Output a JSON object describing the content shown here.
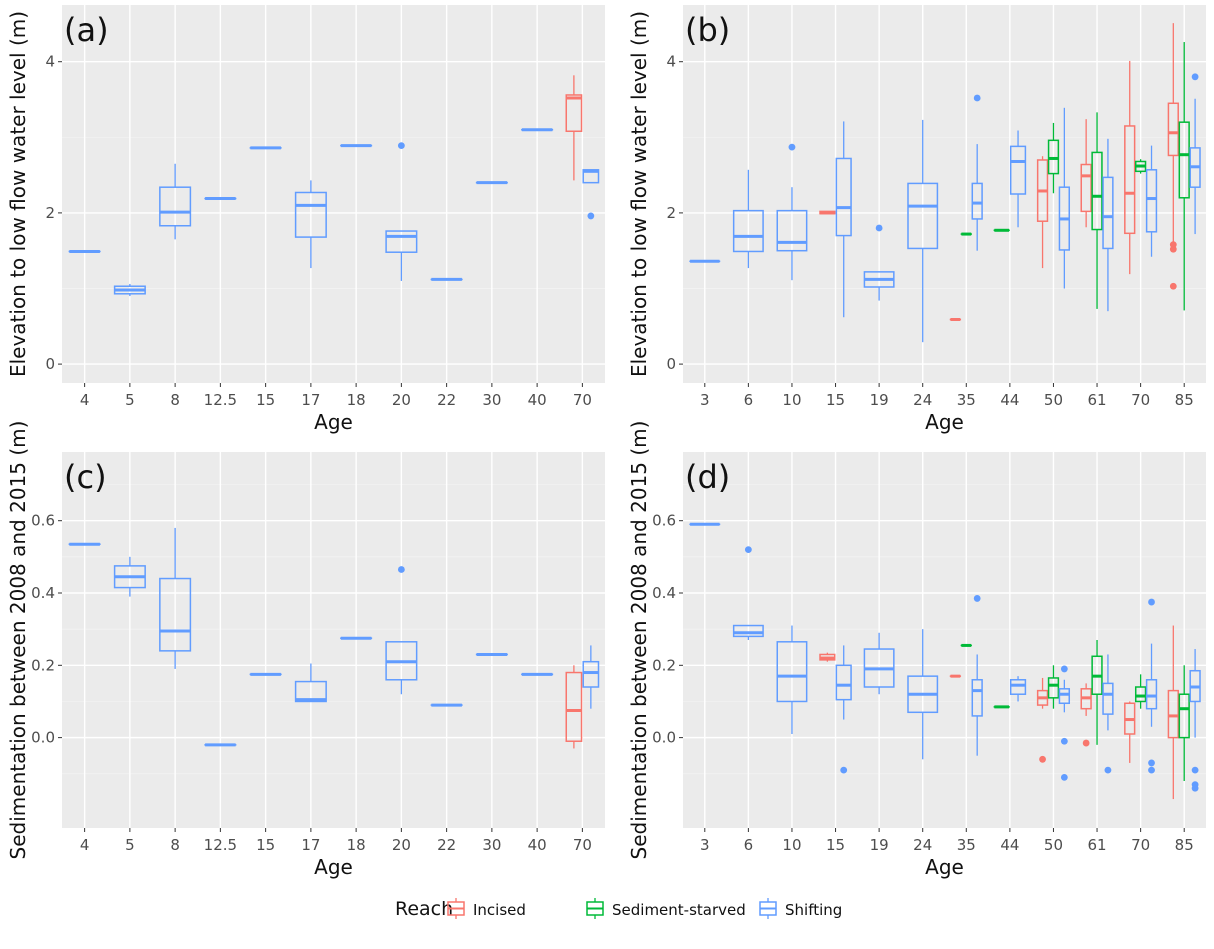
{
  "colors": {
    "Incised": "#F8766D",
    "Sediment-starved": "#00BA38",
    "Shifting": "#619CFF",
    "panel_bg": "#EBEBEB"
  },
  "legend": {
    "title": "Reach",
    "items": [
      "Incised",
      "Sediment-starved",
      "Shifting"
    ]
  },
  "chart_data": [
    {
      "type": "boxplot",
      "panel": "(a)",
      "xlabel": "Age",
      "ylabel": "Elevation to low flow water level (m)",
      "categories": [
        "4",
        "5",
        "8",
        "12.5",
        "15",
        "17",
        "18",
        "20",
        "22",
        "30",
        "40",
        "70"
      ],
      "ylim": [
        -0.25,
        4.75
      ],
      "yticks": [
        0,
        2,
        4
      ],
      "grid": true,
      "boxes": [
        {
          "cat": "4",
          "reach": "Shifting",
          "min": 1.49,
          "q1": 1.49,
          "median": 1.49,
          "q3": 1.49,
          "max": 1.49
        },
        {
          "cat": "5",
          "reach": "Shifting",
          "min": 0.9,
          "q1": 0.93,
          "median": 0.98,
          "q3": 1.03,
          "max": 1.06
        },
        {
          "cat": "8",
          "reach": "Shifting",
          "min": 1.65,
          "q1": 1.83,
          "median": 2.01,
          "q3": 2.34,
          "max": 2.65
        },
        {
          "cat": "12.5",
          "reach": "Shifting",
          "min": 2.19,
          "q1": 2.19,
          "median": 2.19,
          "q3": 2.19,
          "max": 2.19
        },
        {
          "cat": "15",
          "reach": "Shifting",
          "min": 2.86,
          "q1": 2.86,
          "median": 2.86,
          "q3": 2.86,
          "max": 2.86
        },
        {
          "cat": "17",
          "reach": "Shifting",
          "min": 1.27,
          "q1": 1.68,
          "median": 2.1,
          "q3": 2.27,
          "max": 2.43
        },
        {
          "cat": "18",
          "reach": "Shifting",
          "min": 2.89,
          "q1": 2.89,
          "median": 2.89,
          "q3": 2.89,
          "max": 2.89
        },
        {
          "cat": "20",
          "reach": "Shifting",
          "min": 1.1,
          "q1": 1.48,
          "median": 1.69,
          "q3": 1.76,
          "max": 1.76,
          "outliers": [
            2.89
          ]
        },
        {
          "cat": "22",
          "reach": "Shifting",
          "min": 1.12,
          "q1": 1.12,
          "median": 1.12,
          "q3": 1.12,
          "max": 1.12
        },
        {
          "cat": "30",
          "reach": "Shifting",
          "min": 2.4,
          "q1": 2.4,
          "median": 2.4,
          "q3": 2.4,
          "max": 2.4
        },
        {
          "cat": "40",
          "reach": "Shifting",
          "min": 3.1,
          "q1": 3.1,
          "median": 3.1,
          "q3": 3.1,
          "max": 3.1
        },
        {
          "cat": "70",
          "reach": "Incised",
          "min": 2.43,
          "q1": 3.08,
          "median": 3.52,
          "q3": 3.56,
          "max": 3.82
        },
        {
          "cat": "70",
          "reach": "Shifting",
          "min": 2.4,
          "q1": 2.4,
          "median": 2.55,
          "q3": 2.57,
          "max": 2.57,
          "outliers": [
            1.96
          ]
        }
      ]
    },
    {
      "type": "boxplot",
      "panel": "(b)",
      "xlabel": "Age",
      "ylabel": "Elevation to low flow water level (m)",
      "categories": [
        "3",
        "6",
        "10",
        "15",
        "19",
        "24",
        "35",
        "44",
        "50",
        "61",
        "70",
        "85"
      ],
      "ylim": [
        -0.25,
        4.75
      ],
      "yticks": [
        0,
        2,
        4
      ],
      "grid": true,
      "boxes": [
        {
          "cat": "3",
          "reach": "Shifting",
          "min": 1.36,
          "q1": 1.36,
          "median": 1.36,
          "q3": 1.36,
          "max": 1.36
        },
        {
          "cat": "6",
          "reach": "Shifting",
          "min": 1.27,
          "q1": 1.49,
          "median": 1.69,
          "q3": 2.03,
          "max": 2.57
        },
        {
          "cat": "10",
          "reach": "Shifting",
          "min": 1.11,
          "q1": 1.5,
          "median": 1.61,
          "q3": 2.03,
          "max": 2.34,
          "outliers": [
            2.87
          ]
        },
        {
          "cat": "15",
          "reach": "Incised",
          "min": 1.99,
          "q1": 1.99,
          "median": 2.0,
          "q3": 2.02,
          "max": 2.02
        },
        {
          "cat": "15",
          "reach": "Shifting",
          "min": 0.62,
          "q1": 1.7,
          "median": 2.07,
          "q3": 2.72,
          "max": 3.21
        },
        {
          "cat": "19",
          "reach": "Shifting",
          "min": 0.84,
          "q1": 1.02,
          "median": 1.12,
          "q3": 1.22,
          "max": 1.22,
          "outliers": [
            1.8
          ]
        },
        {
          "cat": "24",
          "reach": "Shifting",
          "min": 0.29,
          "q1": 1.53,
          "median": 2.09,
          "q3": 2.39,
          "max": 3.23
        },
        {
          "cat": "35",
          "reach": "Incised",
          "min": 0.59,
          "q1": 0.59,
          "median": 0.59,
          "q3": 0.59,
          "max": 0.59
        },
        {
          "cat": "35",
          "reach": "Sediment-starved",
          "min": 1.72,
          "q1": 1.72,
          "median": 1.72,
          "q3": 1.72,
          "max": 1.72
        },
        {
          "cat": "35",
          "reach": "Shifting",
          "min": 1.5,
          "q1": 1.92,
          "median": 2.13,
          "q3": 2.39,
          "max": 2.91,
          "outliers": [
            3.52
          ]
        },
        {
          "cat": "44",
          "reach": "Sediment-starved",
          "min": 1.77,
          "q1": 1.77,
          "median": 1.77,
          "q3": 1.77,
          "max": 1.77
        },
        {
          "cat": "44",
          "reach": "Shifting",
          "min": 1.81,
          "q1": 2.25,
          "median": 2.68,
          "q3": 2.88,
          "max": 3.09
        },
        {
          "cat": "50",
          "reach": "Incised",
          "min": 1.27,
          "q1": 1.89,
          "median": 2.29,
          "q3": 2.7,
          "max": 2.75
        },
        {
          "cat": "50",
          "reach": "Sediment-starved",
          "min": 2.26,
          "q1": 2.52,
          "median": 2.72,
          "q3": 2.96,
          "max": 3.19
        },
        {
          "cat": "50",
          "reach": "Shifting",
          "min": 1.0,
          "q1": 1.51,
          "median": 1.92,
          "q3": 2.34,
          "max": 3.39
        },
        {
          "cat": "61",
          "reach": "Incised",
          "min": 1.81,
          "q1": 2.02,
          "median": 2.49,
          "q3": 2.64,
          "max": 3.24
        },
        {
          "cat": "61",
          "reach": "Sediment-starved",
          "min": 0.73,
          "q1": 1.78,
          "median": 2.22,
          "q3": 2.8,
          "max": 3.33
        },
        {
          "cat": "61",
          "reach": "Shifting",
          "min": 0.7,
          "q1": 1.53,
          "median": 1.95,
          "q3": 2.47,
          "max": 2.98
        },
        {
          "cat": "70",
          "reach": "Incised",
          "min": 1.19,
          "q1": 1.73,
          "median": 2.26,
          "q3": 3.15,
          "max": 4.01
        },
        {
          "cat": "70",
          "reach": "Sediment-starved",
          "min": 2.52,
          "q1": 2.55,
          "median": 2.62,
          "q3": 2.68,
          "max": 2.71
        },
        {
          "cat": "70",
          "reach": "Shifting",
          "min": 1.42,
          "q1": 1.75,
          "median": 2.19,
          "q3": 2.57,
          "max": 2.89
        },
        {
          "cat": "85",
          "reach": "Incised",
          "min": 1.59,
          "q1": 2.76,
          "median": 3.06,
          "q3": 3.45,
          "max": 4.51,
          "outliers": [
            1.58,
            1.52,
            1.03
          ]
        },
        {
          "cat": "85",
          "reach": "Sediment-starved",
          "min": 0.71,
          "q1": 2.2,
          "median": 2.77,
          "q3": 3.2,
          "max": 4.26
        },
        {
          "cat": "85",
          "reach": "Shifting",
          "min": 1.72,
          "q1": 2.34,
          "median": 2.61,
          "q3": 2.86,
          "max": 3.51,
          "outliers": [
            3.8
          ]
        }
      ]
    },
    {
      "type": "boxplot",
      "panel": "(c)",
      "xlabel": "Age",
      "ylabel": "Sedimentation between 2008 and 2015 (m)",
      "categories": [
        "4",
        "5",
        "8",
        "12.5",
        "15",
        "17",
        "18",
        "20",
        "22",
        "30",
        "40",
        "70"
      ],
      "ylim": [
        -0.25,
        0.79
      ],
      "yticks": [
        0.0,
        0.2,
        0.4,
        0.6
      ],
      "ytick_labels": [
        "0.0",
        "0.2",
        "0.4",
        "0.6"
      ],
      "grid": true,
      "boxes": [
        {
          "cat": "4",
          "reach": "Shifting",
          "min": 0.535,
          "q1": 0.535,
          "median": 0.535,
          "q3": 0.535,
          "max": 0.535
        },
        {
          "cat": "5",
          "reach": "Shifting",
          "min": 0.39,
          "q1": 0.415,
          "median": 0.445,
          "q3": 0.475,
          "max": 0.5
        },
        {
          "cat": "8",
          "reach": "Shifting",
          "min": 0.19,
          "q1": 0.24,
          "median": 0.295,
          "q3": 0.44,
          "max": 0.58
        },
        {
          "cat": "12.5",
          "reach": "Shifting",
          "min": -0.02,
          "q1": -0.02,
          "median": -0.02,
          "q3": -0.02,
          "max": -0.02
        },
        {
          "cat": "15",
          "reach": "Shifting",
          "min": 0.175,
          "q1": 0.175,
          "median": 0.175,
          "q3": 0.175,
          "max": 0.175
        },
        {
          "cat": "17",
          "reach": "Shifting",
          "min": 0.1,
          "q1": 0.1,
          "median": 0.105,
          "q3": 0.155,
          "max": 0.205
        },
        {
          "cat": "18",
          "reach": "Shifting",
          "min": 0.275,
          "q1": 0.275,
          "median": 0.275,
          "q3": 0.275,
          "max": 0.275
        },
        {
          "cat": "20",
          "reach": "Shifting",
          "min": 0.12,
          "q1": 0.16,
          "median": 0.21,
          "q3": 0.265,
          "max": 0.265,
          "outliers": [
            0.465
          ]
        },
        {
          "cat": "22",
          "reach": "Shifting",
          "min": 0.09,
          "q1": 0.09,
          "median": 0.09,
          "q3": 0.09,
          "max": 0.09
        },
        {
          "cat": "30",
          "reach": "Shifting",
          "min": 0.23,
          "q1": 0.23,
          "median": 0.23,
          "q3": 0.23,
          "max": 0.23
        },
        {
          "cat": "40",
          "reach": "Shifting",
          "min": 0.175,
          "q1": 0.175,
          "median": 0.175,
          "q3": 0.175,
          "max": 0.175
        },
        {
          "cat": "70",
          "reach": "Incised",
          "min": -0.03,
          "q1": -0.01,
          "median": 0.075,
          "q3": 0.18,
          "max": 0.2
        },
        {
          "cat": "70",
          "reach": "Shifting",
          "min": 0.08,
          "q1": 0.14,
          "median": 0.18,
          "q3": 0.21,
          "max": 0.255
        }
      ]
    },
    {
      "type": "boxplot",
      "panel": "(d)",
      "xlabel": "Age",
      "ylabel": "Sedimentation between 2008 and 2015 (m)",
      "categories": [
        "3",
        "6",
        "10",
        "15",
        "19",
        "24",
        "35",
        "44",
        "50",
        "61",
        "70",
        "85"
      ],
      "ylim": [
        -0.25,
        0.79
      ],
      "yticks": [
        0.0,
        0.2,
        0.4,
        0.6
      ],
      "ytick_labels": [
        "0.0",
        "0.2",
        "0.4",
        "0.6"
      ],
      "grid": true,
      "boxes": [
        {
          "cat": "3",
          "reach": "Shifting",
          "min": 0.59,
          "q1": 0.59,
          "median": 0.59,
          "q3": 0.59,
          "max": 0.59
        },
        {
          "cat": "6",
          "reach": "Shifting",
          "min": 0.27,
          "q1": 0.28,
          "median": 0.29,
          "q3": 0.31,
          "max": 0.31,
          "outliers": [
            0.52
          ]
        },
        {
          "cat": "10",
          "reach": "Shifting",
          "min": 0.01,
          "q1": 0.1,
          "median": 0.17,
          "q3": 0.265,
          "max": 0.31
        },
        {
          "cat": "15",
          "reach": "Incised",
          "min": 0.21,
          "q1": 0.215,
          "median": 0.22,
          "q3": 0.23,
          "max": 0.235
        },
        {
          "cat": "15",
          "reach": "Shifting",
          "min": 0.05,
          "q1": 0.105,
          "median": 0.145,
          "q3": 0.2,
          "max": 0.255,
          "outliers": [
            -0.09
          ]
        },
        {
          "cat": "19",
          "reach": "Shifting",
          "min": 0.12,
          "q1": 0.14,
          "median": 0.19,
          "q3": 0.245,
          "max": 0.29
        },
        {
          "cat": "24",
          "reach": "Shifting",
          "min": -0.06,
          "q1": 0.07,
          "median": 0.12,
          "q3": 0.17,
          "max": 0.3
        },
        {
          "cat": "35",
          "reach": "Incised",
          "min": 0.17,
          "q1": 0.17,
          "median": 0.17,
          "q3": 0.17,
          "max": 0.17
        },
        {
          "cat": "35",
          "reach": "Sediment-starved",
          "min": 0.255,
          "q1": 0.255,
          "median": 0.255,
          "q3": 0.255,
          "max": 0.255
        },
        {
          "cat": "35",
          "reach": "Shifting",
          "min": -0.05,
          "q1": 0.06,
          "median": 0.13,
          "q3": 0.16,
          "max": 0.23,
          "outliers": [
            0.385
          ]
        },
        {
          "cat": "44",
          "reach": "Sediment-starved",
          "min": 0.085,
          "q1": 0.085,
          "median": 0.085,
          "q3": 0.085,
          "max": 0.085
        },
        {
          "cat": "44",
          "reach": "Shifting",
          "min": 0.1,
          "q1": 0.12,
          "median": 0.145,
          "q3": 0.16,
          "max": 0.17
        },
        {
          "cat": "50",
          "reach": "Incised",
          "min": 0.08,
          "q1": 0.09,
          "median": 0.11,
          "q3": 0.13,
          "max": 0.165,
          "outliers": [
            -0.06
          ]
        },
        {
          "cat": "50",
          "reach": "Sediment-starved",
          "min": 0.08,
          "q1": 0.11,
          "median": 0.145,
          "q3": 0.165,
          "max": 0.2
        },
        {
          "cat": "50",
          "reach": "Shifting",
          "min": 0.07,
          "q1": 0.095,
          "median": 0.12,
          "q3": 0.135,
          "max": 0.16,
          "outliers": [
            0.19,
            -0.01,
            -0.11
          ]
        },
        {
          "cat": "61",
          "reach": "Incised",
          "min": 0.06,
          "q1": 0.08,
          "median": 0.11,
          "q3": 0.135,
          "max": 0.15,
          "outliers": [
            -0.015
          ]
        },
        {
          "cat": "61",
          "reach": "Sediment-starved",
          "min": -0.02,
          "q1": 0.12,
          "median": 0.17,
          "q3": 0.225,
          "max": 0.27
        },
        {
          "cat": "61",
          "reach": "Shifting",
          "min": 0.02,
          "q1": 0.065,
          "median": 0.12,
          "q3": 0.15,
          "max": 0.23,
          "outliers": [
            -0.09
          ]
        },
        {
          "cat": "70",
          "reach": "Incised",
          "min": -0.07,
          "q1": 0.01,
          "median": 0.05,
          "q3": 0.095,
          "max": 0.1
        },
        {
          "cat": "70",
          "reach": "Sediment-starved",
          "min": 0.08,
          "q1": 0.1,
          "median": 0.115,
          "q3": 0.14,
          "max": 0.175
        },
        {
          "cat": "70",
          "reach": "Shifting",
          "min": 0.03,
          "q1": 0.08,
          "median": 0.115,
          "q3": 0.16,
          "max": 0.26,
          "outliers": [
            0.375,
            -0.07,
            -0.09
          ]
        },
        {
          "cat": "85",
          "reach": "Incised",
          "min": -0.17,
          "q1": 0.0,
          "median": 0.06,
          "q3": 0.13,
          "max": 0.31
        },
        {
          "cat": "85",
          "reach": "Sediment-starved",
          "min": -0.12,
          "q1": 0.0,
          "median": 0.08,
          "q3": 0.12,
          "max": 0.2
        },
        {
          "cat": "85",
          "reach": "Shifting",
          "min": 0.0,
          "q1": 0.1,
          "median": 0.14,
          "q3": 0.185,
          "max": 0.245,
          "outliers": [
            -0.09,
            -0.13,
            -0.14
          ]
        }
      ]
    }
  ]
}
